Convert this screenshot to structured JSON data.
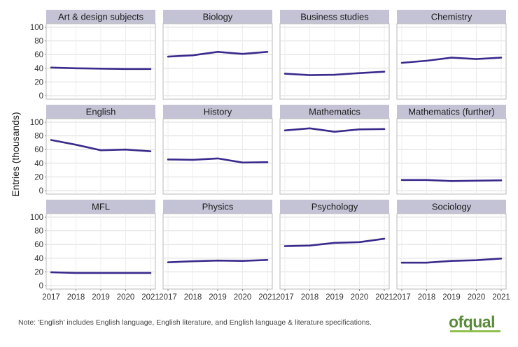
{
  "chart_data": {
    "type": "line",
    "layout": "facet-grid",
    "ylabel": "Entries (thousands)",
    "x": [
      "2017",
      "2018",
      "2019",
      "2020",
      "2021"
    ],
    "ylim": [
      0,
      100
    ],
    "yticks": [
      "0",
      "20",
      "40",
      "60",
      "80",
      "100"
    ],
    "grid": true,
    "line_color": "#3b2a8c",
    "strip_color": "#c4c3d6",
    "panels": [
      {
        "title": "Art & design subjects",
        "values": [
          41,
          40,
          39.5,
          39,
          39
        ]
      },
      {
        "title": "Biology",
        "values": [
          57,
          59,
          64,
          61,
          64
        ]
      },
      {
        "title": "Business studies",
        "values": [
          32,
          30,
          30.5,
          33,
          35
        ]
      },
      {
        "title": "Chemistry",
        "values": [
          48,
          51,
          55.5,
          53.5,
          55.5
        ]
      },
      {
        "title": "English",
        "values": [
          74,
          67,
          59,
          60,
          57.5
        ]
      },
      {
        "title": "History",
        "values": [
          45.5,
          45,
          47,
          41,
          41.5
        ]
      },
      {
        "title": "Mathematics",
        "values": [
          88,
          91,
          86,
          89.5,
          90
        ]
      },
      {
        "title": "Mathematics (further)",
        "values": [
          15.5,
          15.5,
          14,
          14.5,
          15
        ]
      },
      {
        "title": "MFL",
        "values": [
          19.5,
          18.5,
          18.5,
          18.5,
          18.5
        ]
      },
      {
        "title": "Physics",
        "values": [
          34,
          35.5,
          36.5,
          36,
          37.5
        ]
      },
      {
        "title": "Psychology",
        "values": [
          57.5,
          58.5,
          62.5,
          63.5,
          68.5
        ]
      },
      {
        "title": "Sociology",
        "values": [
          33.5,
          33.5,
          36,
          37,
          39.5
        ]
      }
    ]
  },
  "footer": {
    "note": "Note: 'English' includes English language, English literature, and English language & literature specifications.",
    "logo": "ofqual"
  }
}
